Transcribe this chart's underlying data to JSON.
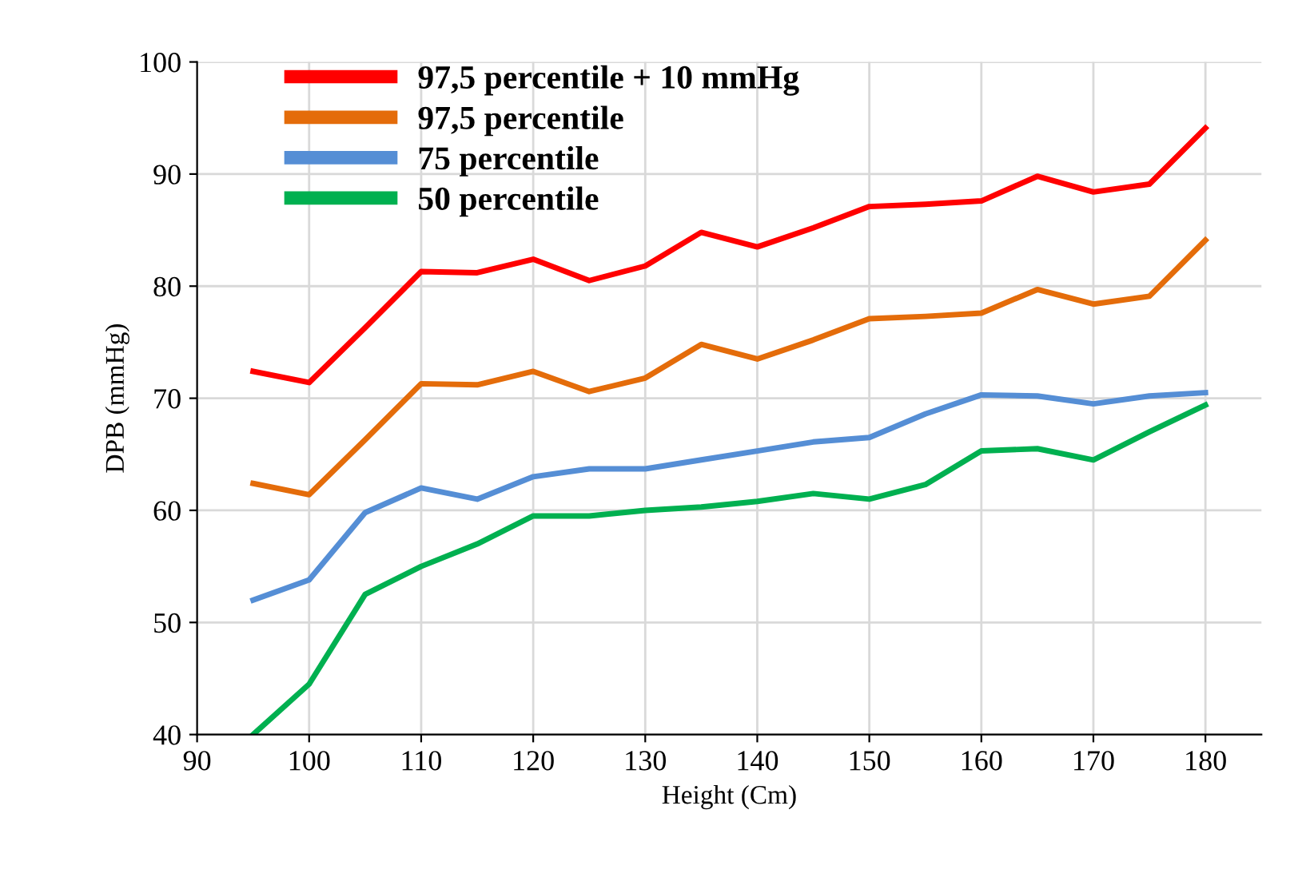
{
  "chart_data": {
    "type": "line",
    "xlabel": "Height (Cm)",
    "ylabel": "DPB (mmHg)",
    "x": [
      95,
      100,
      105,
      110,
      115,
      120,
      125,
      130,
      135,
      140,
      145,
      150,
      155,
      160,
      165,
      170,
      175,
      180
    ],
    "xlim": [
      90,
      185
    ],
    "xticks": [
      90,
      100,
      110,
      120,
      130,
      140,
      150,
      160,
      170,
      180
    ],
    "ylim": [
      40,
      100
    ],
    "yticks": [
      40,
      50,
      60,
      70,
      80,
      90,
      100
    ],
    "grid": true,
    "legend": "top left",
    "marker": "none",
    "line_style": "solid",
    "series": [
      {
        "name": "97,5 percentile + 10 mmHg",
        "color": "#ff0000",
        "values": [
          72.4,
          71.4,
          76.3,
          81.3,
          81.2,
          82.4,
          80.5,
          81.8,
          84.8,
          83.5,
          85.2,
          87.1,
          87.3,
          87.6,
          89.8,
          88.4,
          89.1,
          94.1
        ]
      },
      {
        "name": "97,5 percentile",
        "color": "#e46c0a",
        "values": [
          62.4,
          61.4,
          66.3,
          71.3,
          71.2,
          72.4,
          70.6,
          71.8,
          74.8,
          73.5,
          75.2,
          77.1,
          77.3,
          77.6,
          79.7,
          78.4,
          79.1,
          84.1
        ]
      },
      {
        "name": "75 percentile",
        "color": "#558ed5",
        "values": [
          52,
          53.8,
          59.8,
          62,
          61,
          63,
          63.7,
          63.7,
          64.5,
          65.3,
          66.1,
          66.5,
          68.6,
          70.3,
          70.2,
          69.5,
          70.2,
          70.5
        ]
      },
      {
        "name": "50 percentile",
        "color": "#00b050",
        "values": [
          40,
          44.5,
          52.5,
          55,
          57,
          59.5,
          59.5,
          60,
          60.3,
          60.8,
          61.5,
          61,
          62.3,
          65.3,
          65.5,
          64.5,
          67,
          69.4
        ]
      }
    ]
  }
}
